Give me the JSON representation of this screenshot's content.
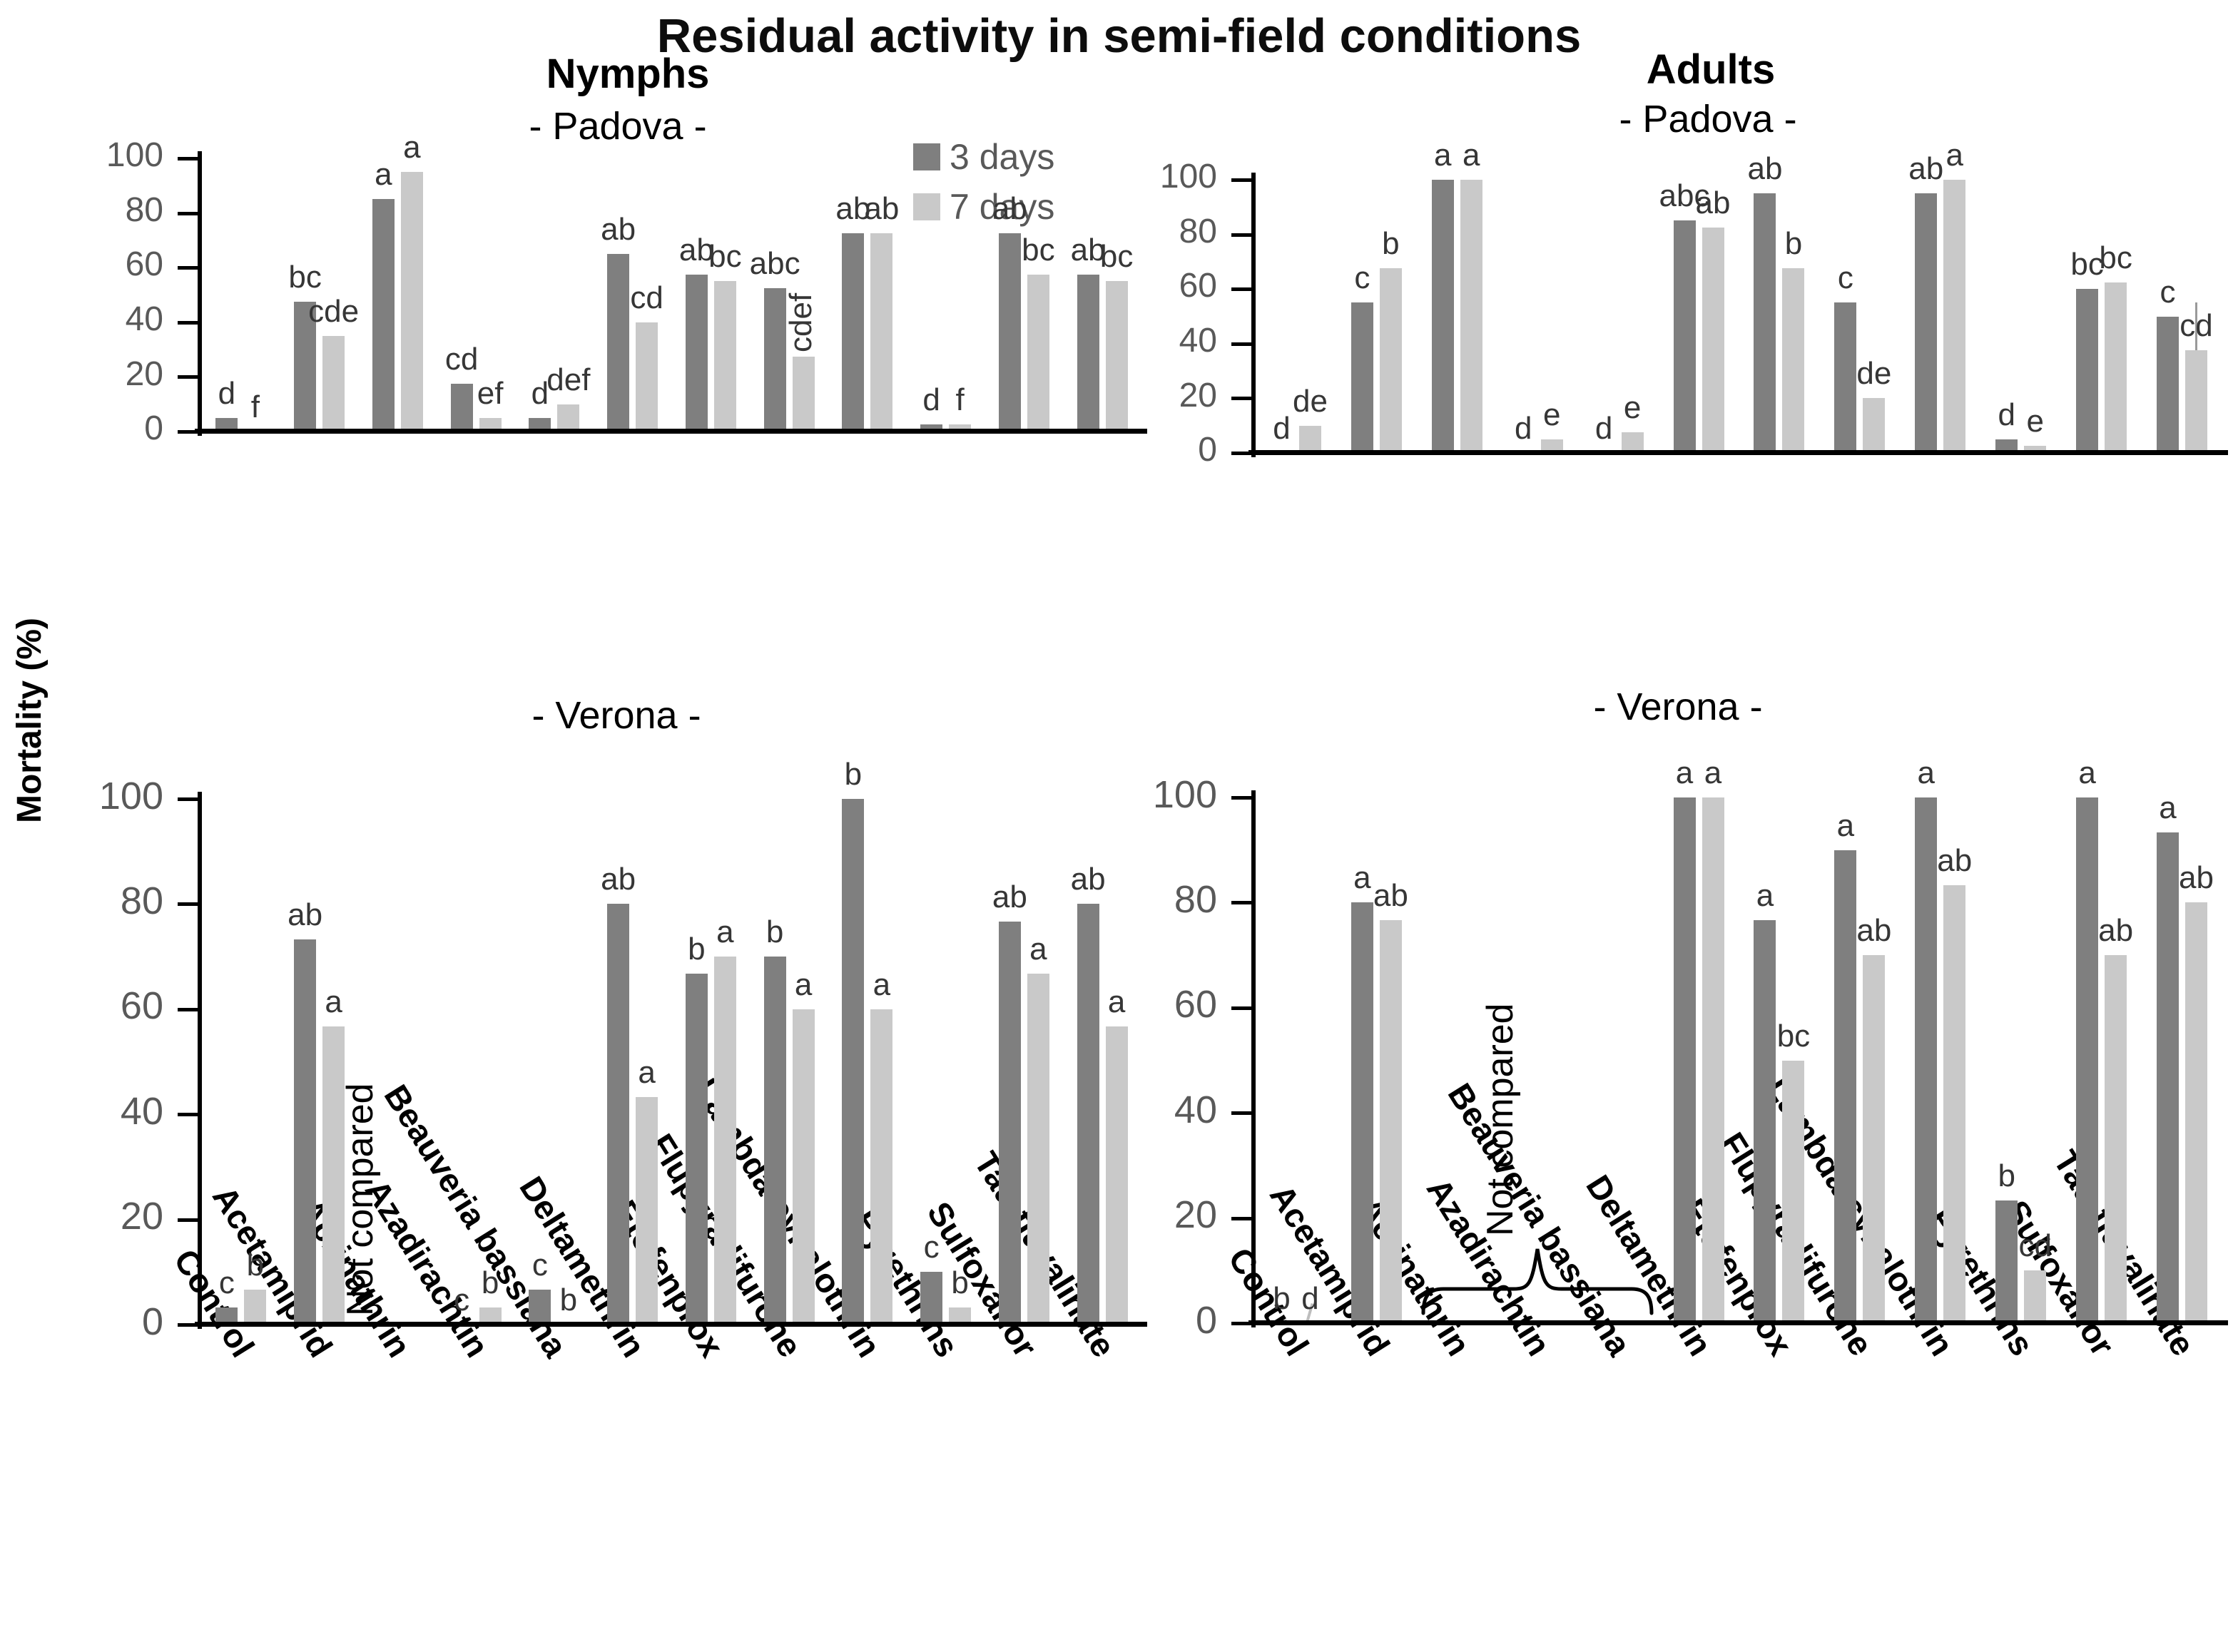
{
  "title": "Residual activity in semi-field conditions",
  "y_axis": {
    "label": "Mortality (%)",
    "ticks": [
      0,
      20,
      40,
      60,
      80,
      100
    ],
    "max": 100
  },
  "legend": {
    "position": "top-center",
    "items": [
      {
        "label": "3 days",
        "color": "#7f7f7f"
      },
      {
        "label": "7 days",
        "color": "#c9c9c9"
      }
    ]
  },
  "categories": [
    "Control",
    "Acetamiprid",
    "Acrinathrin",
    "Azadirachtin",
    "Beauveria bassiana",
    "Deltamethrin",
    "Etofenprox",
    "Flupyradifurone",
    "Lambda-cyhalothrin",
    "Pyrethrins",
    "Sulfoxaflor",
    "Tau-fluvalinate"
  ],
  "not_compared_label": "Not compared",
  "chart_data": [
    {
      "id": "nymphs-padova",
      "type": "bar",
      "heading": "Nymphs",
      "subheading": "- Padova -",
      "ylim": [
        0,
        100
      ],
      "series": [
        {
          "name": "3 days",
          "values": [
            5,
            47.5,
            85,
            17.5,
            5,
            65,
            57.5,
            52.5,
            72.5,
            2.5,
            72.5,
            57.5
          ],
          "letters": [
            "d",
            "bc",
            "a",
            "cd",
            "d",
            "ab",
            "ab",
            "abc",
            "ab",
            "d",
            "ab",
            "ab"
          ]
        },
        {
          "name": "7 days",
          "values": [
            0,
            35,
            95,
            5,
            10,
            40,
            55,
            27.5,
            72.5,
            2.5,
            57.5,
            55
          ],
          "letters": [
            "f",
            "cde",
            "a",
            "ef",
            "def",
            "cd",
            "bc",
            "cdef",
            "ab",
            "f",
            "bc",
            "bc"
          ],
          "rotated_letter_index": 7
        }
      ]
    },
    {
      "id": "adults-padova",
      "type": "bar",
      "heading": "Adults",
      "subheading": "- Padova -",
      "ylim": [
        0,
        100
      ],
      "series": [
        {
          "name": "3 days",
          "values": [
            0,
            55,
            100,
            0,
            0,
            85,
            95,
            55,
            95,
            5,
            60,
            50
          ],
          "letters": [
            "d",
            "c",
            "a",
            "d",
            "d",
            "abc",
            "ab",
            "c",
            "ab",
            "d",
            "bc",
            "c"
          ]
        },
        {
          "name": "7 days",
          "values": [
            10,
            67.5,
            100,
            5,
            7.5,
            82.5,
            67.5,
            20,
            100,
            2.5,
            62.5,
            37.5
          ],
          "letters": [
            "de",
            "b",
            "a",
            "e",
            "e",
            "ab",
            "b",
            "de",
            "a",
            "e",
            "bc",
            "cd"
          ]
        }
      ],
      "error_bar": {
        "series_index": 1,
        "category_index": 11,
        "from": 37.5,
        "to": 55
      }
    },
    {
      "id": "nymphs-verona",
      "type": "bar",
      "heading": null,
      "subheading": "- Verona -",
      "ylim": [
        0,
        100
      ],
      "series": [
        {
          "name": "3 days",
          "values": [
            3.3,
            73.3,
            null,
            0,
            6.7,
            80,
            66.7,
            70,
            100,
            10,
            76.7,
            80
          ],
          "letters": [
            "c",
            "ab",
            null,
            "c",
            "c",
            "ab",
            "b",
            "b",
            "b",
            "c",
            "ab",
            "ab"
          ]
        },
        {
          "name": "7 days",
          "values": [
            6.7,
            56.7,
            null,
            3.3,
            0,
            43.3,
            70,
            60,
            60,
            3.3,
            66.7,
            56.7
          ],
          "letters": [
            "b",
            "a",
            null,
            "b",
            "b",
            "a",
            "a",
            "a",
            "a",
            "b",
            "a",
            "a"
          ]
        }
      ],
      "not_compared": {
        "category_indices": [
          2
        ],
        "brace": false
      }
    },
    {
      "id": "adults-verona",
      "type": "bar",
      "heading": null,
      "subheading": "- Verona -",
      "ylim": [
        0,
        100
      ],
      "series": [
        {
          "name": "3 days",
          "values": [
            0,
            80,
            null,
            null,
            null,
            100,
            76.7,
            90,
            100,
            23.3,
            100,
            93.3
          ],
          "letters": [
            "b",
            "a",
            null,
            null,
            null,
            "a",
            "a",
            "a",
            "a",
            "b",
            "a",
            "a"
          ]
        },
        {
          "name": "7 days",
          "values": [
            0,
            76.7,
            null,
            null,
            null,
            100,
            50,
            70,
            83.3,
            10,
            70,
            80
          ],
          "letters": [
            "d",
            "ab",
            null,
            null,
            null,
            "a",
            "bc",
            "ab",
            "ab",
            "cd",
            "ab",
            "ab"
          ]
        }
      ],
      "not_compared": {
        "category_indices": [
          2,
          3,
          4
        ],
        "brace": true
      },
      "zero_mark": {
        "series_index": 1,
        "category_index": 0
      }
    }
  ]
}
